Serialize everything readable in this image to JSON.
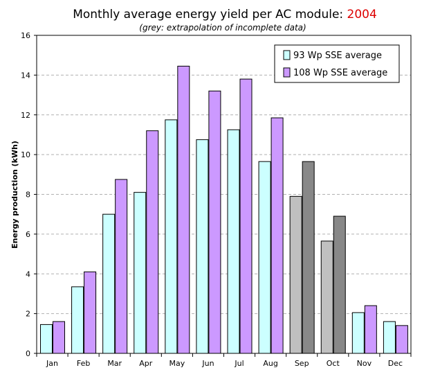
{
  "chart_data": {
    "type": "bar",
    "title": "Monthly average energy yield per AC module: ",
    "title_year": "2004",
    "title_year_color": "#dd0000",
    "subtitle": "(grey: extrapolation of incomplete data)",
    "xlabel": "",
    "ylabel": "Energy production (kWh)",
    "ylim": [
      0,
      16
    ],
    "yticks": [
      "0",
      "2",
      "4",
      "6",
      "8",
      "10",
      "12",
      "14",
      "16"
    ],
    "grid": true,
    "legend_position": "top-right",
    "categories": [
      "Jan",
      "Feb",
      "Mar",
      "Apr",
      "May",
      "Jun",
      "Jul",
      "Aug",
      "Sep",
      "Oct",
      "Nov",
      "Dec"
    ],
    "series": [
      {
        "name": "93 Wp SSE average",
        "color": "#ccffff",
        "values": [
          1.45,
          3.35,
          7.0,
          8.1,
          11.75,
          10.75,
          11.25,
          9.65,
          7.9,
          5.65,
          2.05,
          1.6
        ]
      },
      {
        "name": "108 Wp SSE average",
        "color": "#cc99ff",
        "values": [
          1.6,
          4.1,
          8.75,
          11.2,
          14.45,
          13.2,
          13.8,
          11.85,
          9.65,
          6.9,
          2.4,
          1.4
        ]
      }
    ],
    "extrapolated_categories": [
      "Sep",
      "Oct"
    ],
    "extrapolated_colors": [
      "#c0c0c0",
      "#888888"
    ]
  }
}
